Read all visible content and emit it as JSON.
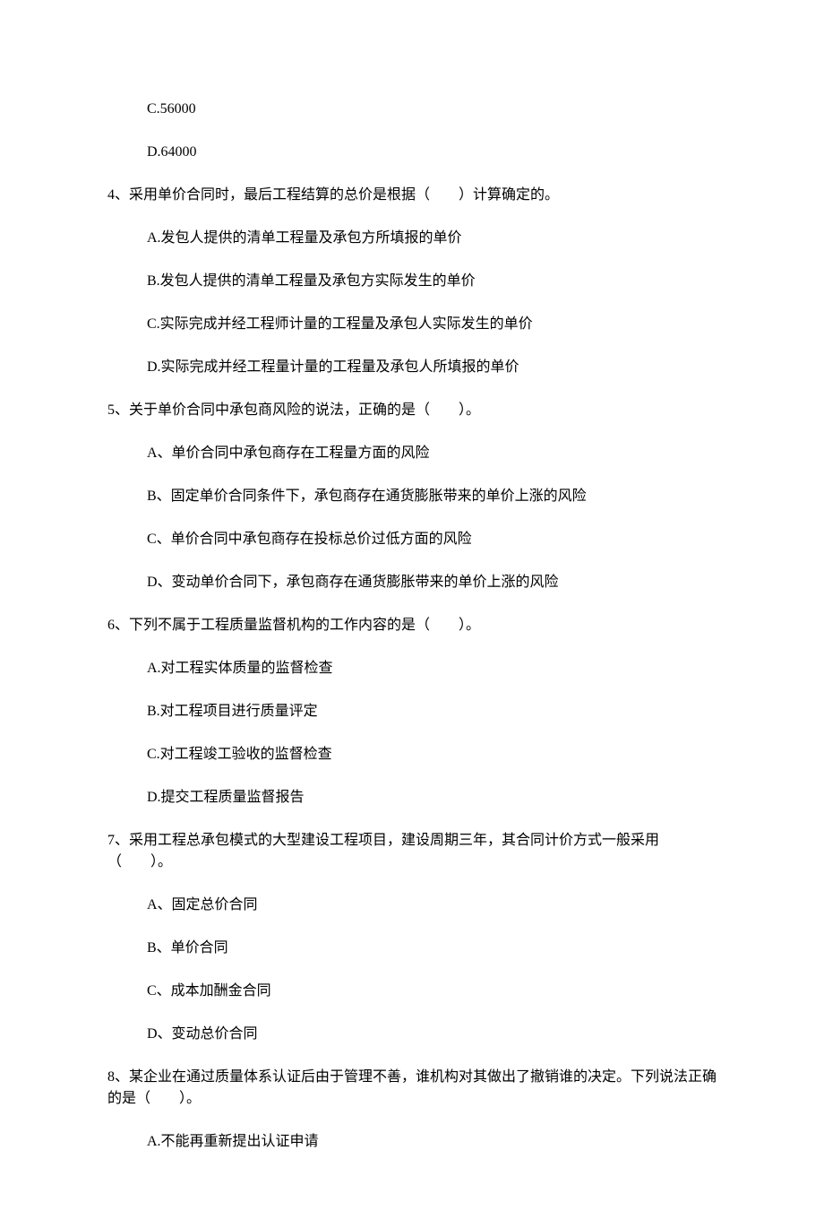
{
  "items": [
    {
      "type": "option",
      "text": "C.56000"
    },
    {
      "type": "option",
      "text": "D.64000"
    },
    {
      "type": "question",
      "text": "4、采用单价合同时，最后工程结算的总价是根据（　　）计算确定的。"
    },
    {
      "type": "option",
      "text": "A.发包人提供的清单工程量及承包方所填报的单价"
    },
    {
      "type": "option",
      "text": "B.发包人提供的清单工程量及承包方实际发生的单价"
    },
    {
      "type": "option",
      "text": "C.实际完成并经工程师计量的工程量及承包人实际发生的单价"
    },
    {
      "type": "option",
      "text": "D.实际完成并经工程量计量的工程量及承包人所填报的单价"
    },
    {
      "type": "question",
      "text": "5、关于单价合同中承包商风险的说法，正确的是（　　）。"
    },
    {
      "type": "option",
      "text": "A、单价合同中承包商存在工程量方面的风险"
    },
    {
      "type": "option",
      "text": "B、固定单价合同条件下，承包商存在通货膨胀带来的单价上涨的风险"
    },
    {
      "type": "option",
      "text": "C、单价合同中承包商存在投标总价过低方面的风险"
    },
    {
      "type": "option",
      "text": "D、变动单价合同下，承包商存在通货膨胀带来的单价上涨的风险"
    },
    {
      "type": "question",
      "text": "6、下列不属于工程质量监督机构的工作内容的是（　　）。"
    },
    {
      "type": "option",
      "text": "A.对工程实体质量的监督检查"
    },
    {
      "type": "option",
      "text": "B.对工程项目进行质量评定"
    },
    {
      "type": "option",
      "text": "C.对工程竣工验收的监督检查"
    },
    {
      "type": "option",
      "text": "D.提交工程质量监督报告"
    },
    {
      "type": "question",
      "text": "7、采用工程总承包模式的大型建设工程项目，建设周期三年，其合同计价方式一般采用（　　）。"
    },
    {
      "type": "option",
      "text": "A、固定总价合同"
    },
    {
      "type": "option",
      "text": "B、单价合同"
    },
    {
      "type": "option",
      "text": "C、成本加酬金合同"
    },
    {
      "type": "option",
      "text": "D、变动总价合同"
    },
    {
      "type": "question",
      "text": "8、某企业在通过质量体系认证后由于管理不善，谁机构对其做出了撤销谁的决定。下列说法正确的是（　　）。"
    },
    {
      "type": "option",
      "text": "A.不能再重新提出认证申请"
    }
  ]
}
